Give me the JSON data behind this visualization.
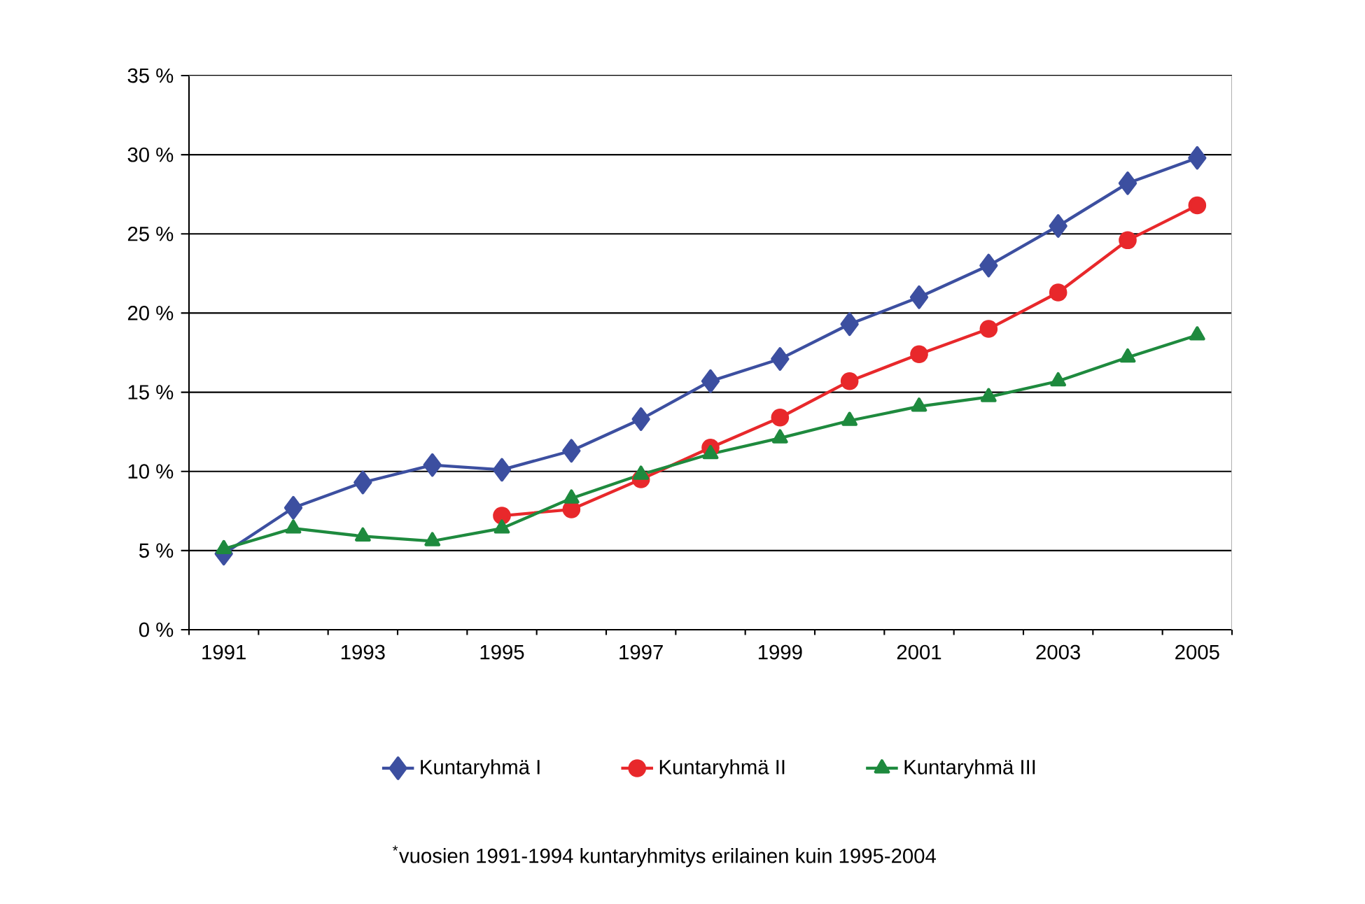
{
  "chart_data": {
    "type": "line",
    "categories": [
      "1991",
      null,
      "1993",
      null,
      "1995",
      null,
      "1997",
      null,
      "1999",
      null,
      "2001",
      null,
      "2003",
      null,
      "2005"
    ],
    "series": [
      {
        "name": "Kuntaryhmä I",
        "color": "#3c4fa0",
        "marker": "diamond",
        "values": [
          4.8,
          7.7,
          9.3,
          10.4,
          10.1,
          11.3,
          13.3,
          15.7,
          17.1,
          19.3,
          21.0,
          23.0,
          25.5,
          28.2,
          29.8
        ]
      },
      {
        "name": "Kuntaryhmä II",
        "color": "#e8282b",
        "marker": "circle",
        "values": [
          null,
          null,
          null,
          null,
          7.2,
          7.6,
          9.5,
          11.5,
          13.4,
          15.7,
          17.4,
          19.0,
          21.3,
          24.6,
          26.8
        ]
      },
      {
        "name": "Kuntaryhmä III",
        "color": "#1e8a3e",
        "marker": "triangle",
        "values": [
          5.1,
          6.4,
          5.9,
          5.6,
          6.4,
          8.3,
          9.8,
          11.1,
          12.1,
          13.2,
          14.1,
          14.7,
          15.7,
          17.2,
          18.6
        ]
      }
    ],
    "ylim": [
      0,
      35
    ],
    "yticks": [
      {
        "value": 0,
        "label": "0 %"
      },
      {
        "value": 5,
        "label": "5 %"
      },
      {
        "value": 10,
        "label": "10 %"
      },
      {
        "value": 15,
        "label": "15 %"
      },
      {
        "value": 20,
        "label": "20 %"
      },
      {
        "value": 25,
        "label": "25 %"
      },
      {
        "value": 30,
        "label": "30 %"
      },
      {
        "value": 35,
        "label": "35 %"
      }
    ],
    "grid": "y",
    "legend": "bottom",
    "line_style": "solid",
    "annotations": [
      "$^{*}$vuosien 1991-1994 kuntaryhmitys erilainen kuin 1995-2004"
    ]
  }
}
